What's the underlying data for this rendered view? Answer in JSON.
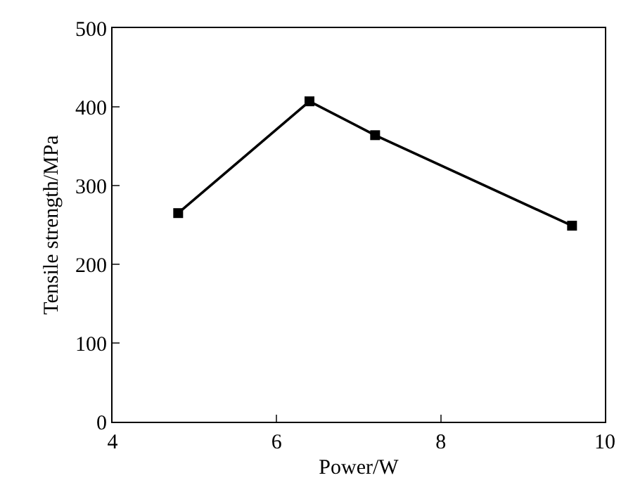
{
  "chart_data": {
    "type": "line",
    "xlabel": "Power/W",
    "ylabel": "Tensile strength/MPa",
    "x": [
      4.8,
      6.4,
      7.2,
      9.6
    ],
    "series": [
      {
        "color": "#000000",
        "values": [
          265,
          407,
          364,
          249
        ]
      }
    ],
    "xlim": [
      4,
      10
    ],
    "xticks": [
      4,
      6,
      8,
      10
    ],
    "ylim": [
      0,
      500
    ],
    "yticks": [
      0,
      100,
      200,
      300,
      400,
      500
    ],
    "grid": false,
    "marker": "square",
    "line_style": "solid"
  }
}
